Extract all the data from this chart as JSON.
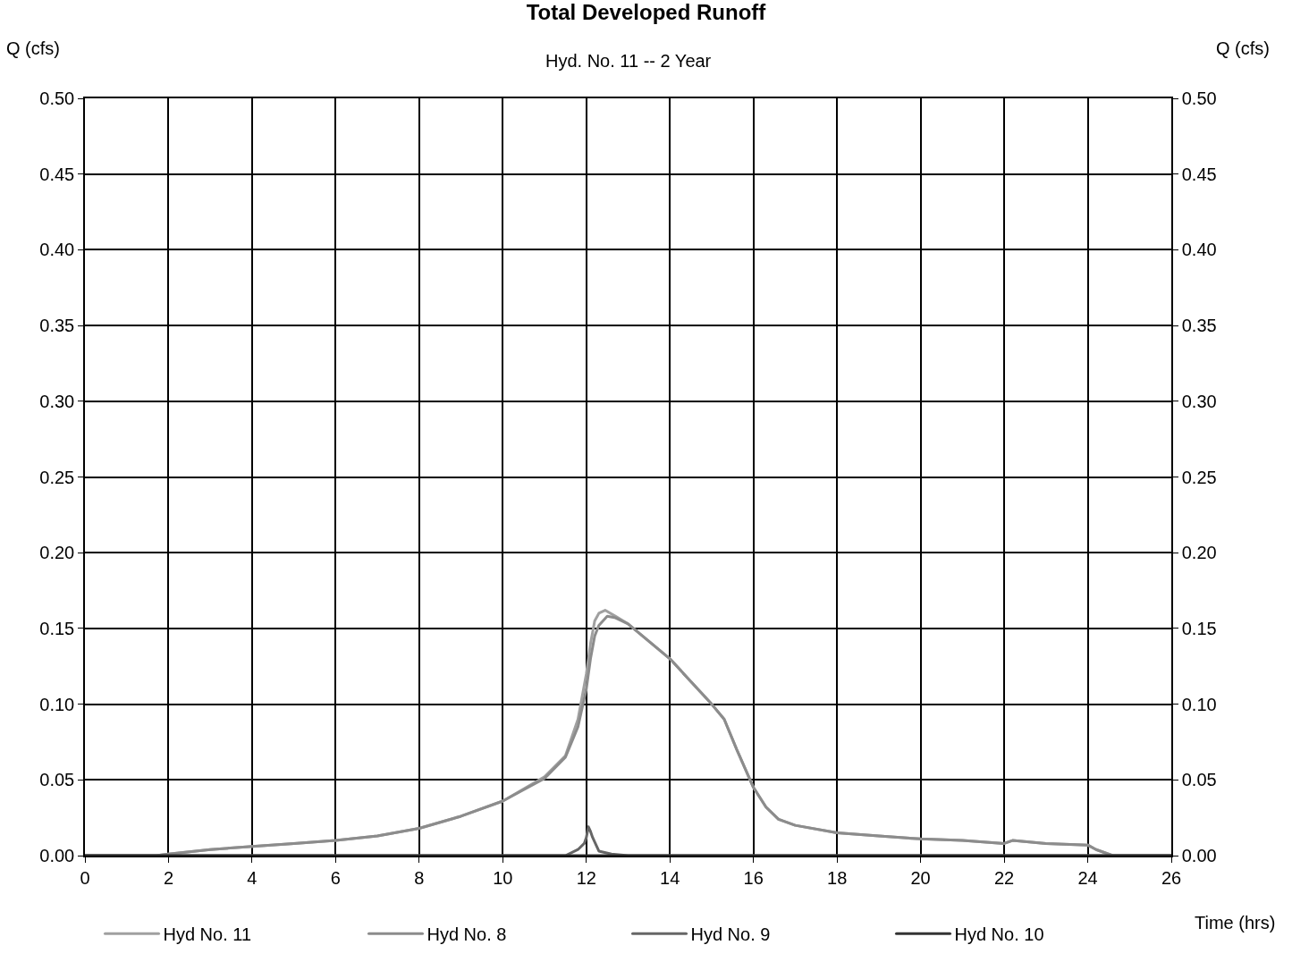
{
  "chart_data": {
    "type": "line",
    "title": "Total Developed Runoff",
    "subtitle": "Hyd. No. 11 -- 2 Year",
    "xlabel": "Time (hrs)",
    "ylabel": "Q (cfs)",
    "y2label": "Q (cfs)",
    "xlim": [
      0,
      26
    ],
    "xticks": [
      0,
      2,
      4,
      6,
      8,
      10,
      12,
      14,
      16,
      18,
      20,
      22,
      24,
      26
    ],
    "ylim": [
      0,
      0.5
    ],
    "yticks": [
      {
        "value": 0,
        "label": "0.00"
      },
      {
        "value": 0.05,
        "label": "0.05"
      },
      {
        "value": 0.1,
        "label": "0.10"
      },
      {
        "value": 0.15,
        "label": "0.15"
      },
      {
        "value": 0.2,
        "label": "0.20"
      },
      {
        "value": 0.25,
        "label": "0.25"
      },
      {
        "value": 0.3,
        "label": "0.30"
      },
      {
        "value": 0.35,
        "label": "0.35"
      },
      {
        "value": 0.4,
        "label": "0.40"
      },
      {
        "value": 0.45,
        "label": "0.45"
      },
      {
        "value": 0.5,
        "label": "0.50"
      }
    ],
    "y2lim": [
      0,
      0.5
    ],
    "y2ticks": [
      {
        "value": 0,
        "label": "0.00"
      },
      {
        "value": 0.05,
        "label": "0.05"
      },
      {
        "value": 0.1,
        "label": "0.10"
      },
      {
        "value": 0.15,
        "label": "0.15"
      },
      {
        "value": 0.2,
        "label": "0.20"
      },
      {
        "value": 0.25,
        "label": "0.25"
      },
      {
        "value": 0.3,
        "label": "0.30"
      },
      {
        "value": 0.35,
        "label": "0.35"
      },
      {
        "value": 0.4,
        "label": "0.40"
      },
      {
        "value": 0.45,
        "label": "0.45"
      },
      {
        "value": 0.5,
        "label": "0.50"
      }
    ],
    "grid": true,
    "legend": "bottom",
    "marker": "none",
    "line_style": "solid",
    "series": [
      {
        "name": "Hyd No. 11",
        "color": "#a0a0a0",
        "x": [
          0,
          1.7,
          2,
          3,
          4,
          5,
          6,
          7,
          8,
          9,
          10,
          11,
          11.5,
          11.8,
          12,
          12.1,
          12.2,
          12.3,
          12.45,
          12.7,
          13,
          14,
          14.5,
          15,
          15.3,
          15.6,
          16,
          16.3,
          16.6,
          17,
          18,
          19,
          20,
          21,
          22,
          22.2,
          23,
          24,
          24.2,
          24.6,
          26
        ],
        "values": [
          0,
          0,
          0.001,
          0.004,
          0.006,
          0.008,
          0.01,
          0.013,
          0.018,
          0.026,
          0.036,
          0.052,
          0.066,
          0.09,
          0.12,
          0.14,
          0.155,
          0.16,
          0.162,
          0.158,
          0.153,
          0.13,
          0.115,
          0.1,
          0.09,
          0.07,
          0.045,
          0.032,
          0.024,
          0.02,
          0.015,
          0.013,
          0.011,
          0.01,
          0.008,
          0.01,
          0.008,
          0.007,
          0.004,
          0,
          0
        ]
      },
      {
        "name": "Hyd No. 8",
        "color": "#8c8c8c",
        "x": [
          0,
          1.7,
          2,
          3,
          4,
          5,
          6,
          7,
          8,
          9,
          10,
          11,
          11.5,
          11.8,
          12,
          12.1,
          12.2,
          12.3,
          12.5,
          12.7,
          13,
          14,
          14.5,
          15,
          15.3,
          15.6,
          16,
          16.3,
          16.6,
          17,
          18,
          19,
          20,
          21,
          22,
          22.2,
          23,
          24,
          24.2,
          24.6,
          26
        ],
        "values": [
          0,
          0,
          0.001,
          0.004,
          0.006,
          0.008,
          0.01,
          0.013,
          0.018,
          0.026,
          0.036,
          0.051,
          0.065,
          0.085,
          0.11,
          0.13,
          0.145,
          0.152,
          0.158,
          0.157,
          0.153,
          0.13,
          0.115,
          0.1,
          0.09,
          0.07,
          0.045,
          0.032,
          0.024,
          0.02,
          0.015,
          0.013,
          0.011,
          0.01,
          0.008,
          0.01,
          0.008,
          0.007,
          0.004,
          0,
          0
        ]
      },
      {
        "name": "Hyd No. 9",
        "color": "#666666",
        "x": [
          0,
          11.5,
          11.8,
          11.95,
          12.0,
          12.05,
          12.1,
          12.15,
          12.3,
          12.6,
          13,
          26
        ],
        "values": [
          0,
          0,
          0.004,
          0.008,
          0.012,
          0.019,
          0.016,
          0.012,
          0.003,
          0.001,
          0,
          0
        ]
      },
      {
        "name": "Hyd No. 10",
        "color": "#333333",
        "x": [
          0,
          26
        ],
        "values": [
          0,
          0
        ]
      }
    ]
  }
}
